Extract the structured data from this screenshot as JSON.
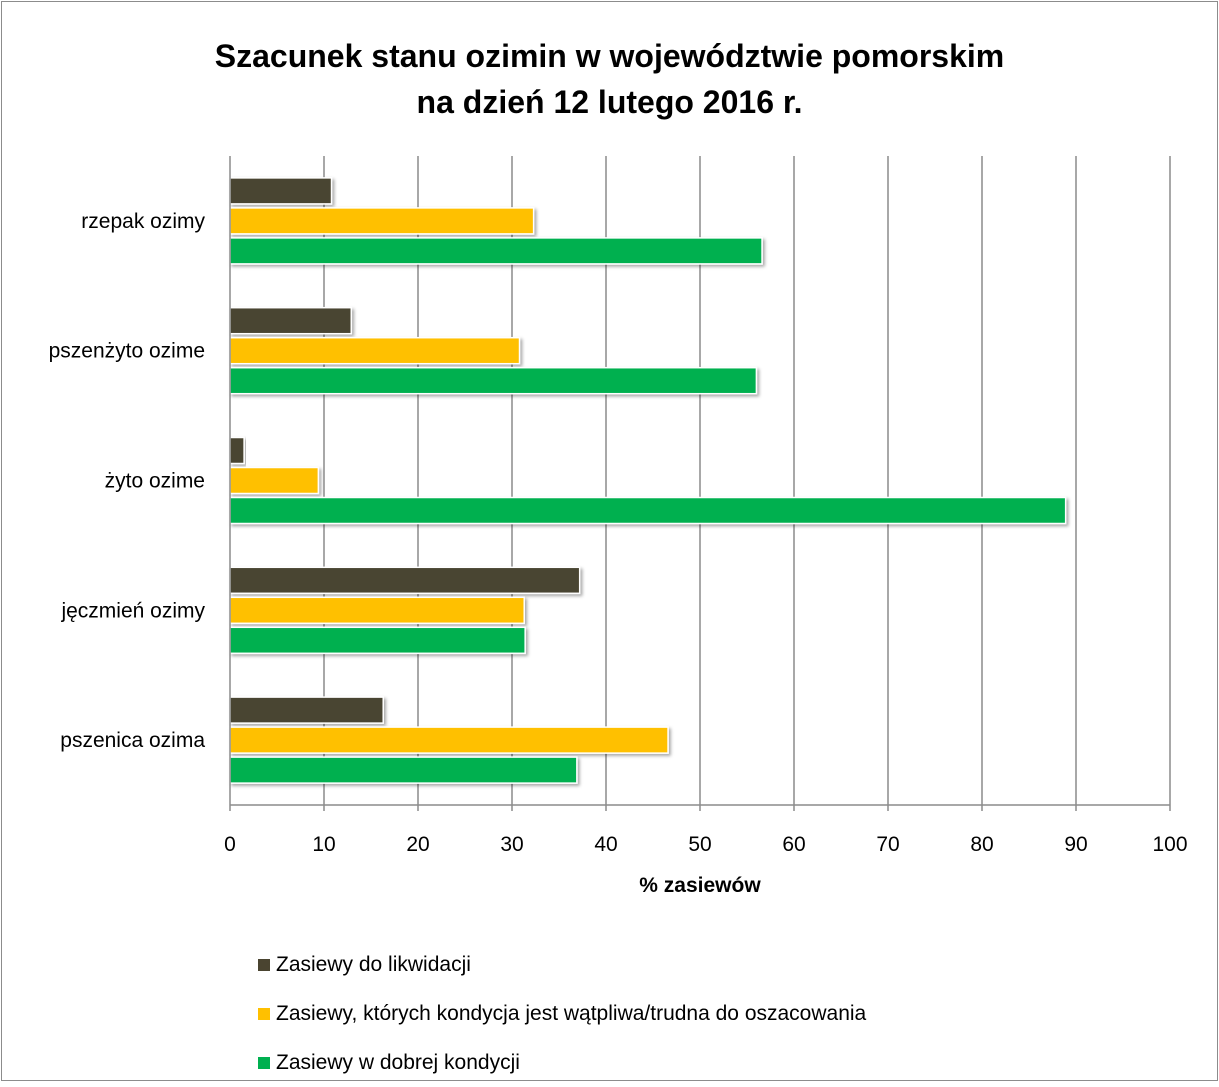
{
  "chart_data": {
    "type": "bar",
    "orientation": "horizontal",
    "title_line1": "Szacunek stanu ozimin w województwie pomorskim",
    "title_line2": "na dzień 12 lutego 2016 r.",
    "xlabel": "% zasiewów",
    "ylabel": "",
    "xlim": [
      0,
      100
    ],
    "ticks": [
      "0",
      "10",
      "20",
      "30",
      "40",
      "50",
      "60",
      "70",
      "80",
      "90",
      "100"
    ],
    "grid": true,
    "legend_position": "bottom",
    "categories": [
      "rzepak ozimy",
      "pszenżyto ozime",
      "żyto ozime",
      "jęczmień ozimy",
      "pszenica ozima"
    ],
    "series": [
      {
        "name": "Zasiewy do likwidacji",
        "color": "#4a4430",
        "values": [
          10.8,
          12.9,
          1.5,
          37.2,
          16.3
        ]
      },
      {
        "name": "Zasiewy, których kondycja jest wątpliwa/trudna do oszacowania",
        "color": "#ffc000",
        "values": [
          32.3,
          30.8,
          9.4,
          31.3,
          46.6
        ]
      },
      {
        "name": "Zasiewy w dobrej kondycji",
        "color": "#00b050",
        "values": [
          56.6,
          56.0,
          88.9,
          31.4,
          36.9
        ]
      }
    ]
  }
}
